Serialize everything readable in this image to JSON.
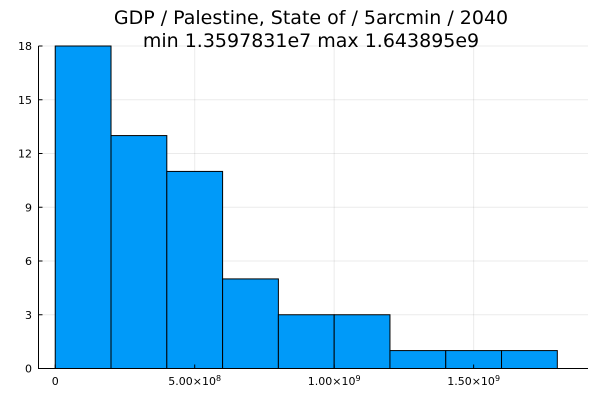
{
  "chart_data": {
    "type": "bar",
    "title": "GDP / Palestine, State of / 5arcmin / 2040",
    "subtitle": "min 1.3597831e7  max 1.643895e9",
    "bin_edges": [
      0,
      200000000,
      400000000,
      600000000,
      800000000,
      1000000000,
      1200000000,
      1400000000,
      1600000000,
      1800000000
    ],
    "values": [
      18,
      13,
      11,
      5,
      3,
      3,
      1,
      1,
      1
    ],
    "xlim": [
      -60000000,
      1910000000
    ],
    "ylim": [
      0,
      18
    ],
    "xticks": [
      {
        "value": 0,
        "mantissa": "0",
        "exp": ""
      },
      {
        "value": 500000000,
        "mantissa": "5.00×10",
        "exp": "8"
      },
      {
        "value": 1000000000,
        "mantissa": "1.00×10",
        "exp": "9"
      },
      {
        "value": 1500000000,
        "mantissa": "1.50×10",
        "exp": "9"
      }
    ],
    "yticks": [
      0,
      3,
      6,
      9,
      12,
      15,
      18
    ],
    "xlabel": "",
    "ylabel": "",
    "grid": true,
    "legend": "none",
    "bar_color": "#009af9"
  }
}
